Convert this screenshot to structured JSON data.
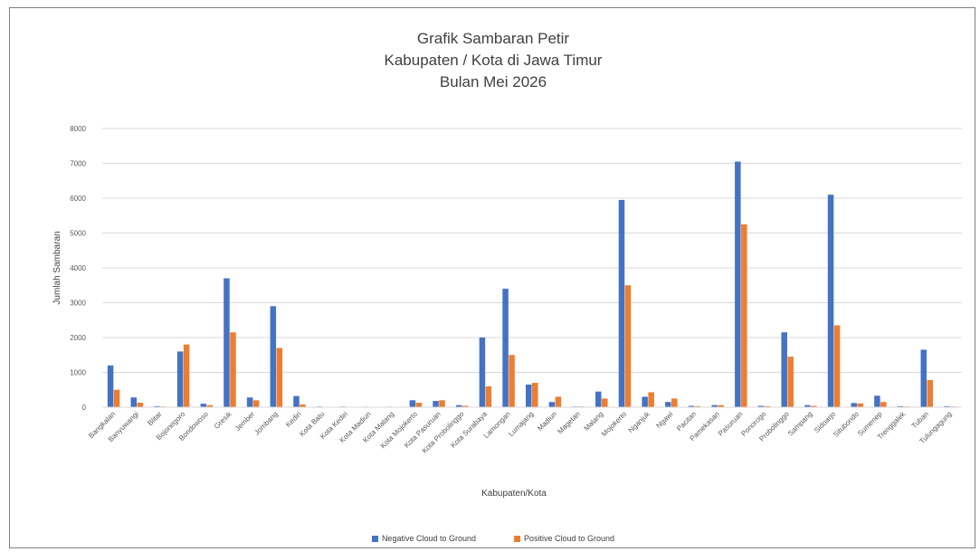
{
  "chart_data": {
    "type": "bar",
    "title": [
      "Grafik Sambaran Petir",
      "Kabupaten / Kota di Jawa Timur",
      "Bulan Mei 2026"
    ],
    "xlabel": "Kabupaten/Kota",
    "ylabel": "Jumlah Sambaran",
    "ylim": [
      0,
      8000
    ],
    "yticks": [
      0,
      1000,
      2000,
      3000,
      4000,
      5000,
      6000,
      7000,
      8000
    ],
    "grid": true,
    "legend_position": "bottom",
    "categories": [
      "Bangkalan",
      "Banyuwangi",
      "Blitar",
      "Bojonegoro",
      "Bondowoso",
      "Gresik",
      "Jember",
      "Jombang",
      "Kediri",
      "Kota Batu",
      "Kota Kediri",
      "Kota Madiun",
      "Kota Malang",
      "Kota Mojokerto",
      "Kota Pasuruan",
      "Kota Probolinggo",
      "Kota Surabaya",
      "Lamongan",
      "Lumajang",
      "Madiun",
      "Magetan",
      "Malang",
      "Mojokerto",
      "Nganjuk",
      "Ngawi",
      "Pacitan",
      "Pamekasan",
      "Pasuruan",
      "Ponorogo",
      "Probolinggo",
      "Sampang",
      "Sidoarjo",
      "Situbondo",
      "Sumenep",
      "Trenggalek",
      "Tuban",
      "Tulungagung"
    ],
    "series": [
      {
        "name": "Negative Cloud to Ground",
        "color": "#4472c4",
        "values": [
          1200,
          280,
          30,
          1600,
          100,
          3700,
          280,
          2900,
          320,
          20,
          20,
          15,
          15,
          200,
          180,
          60,
          2000,
          3400,
          650,
          150,
          20,
          450,
          5950,
          300,
          150,
          40,
          60,
          7050,
          40,
          2150,
          60,
          6100,
          120,
          330,
          30,
          1650,
          30
        ]
      },
      {
        "name": "Positive Cloud to Ground",
        "color": "#ed7d31",
        "values": [
          500,
          130,
          20,
          1800,
          60,
          2150,
          200,
          1700,
          80,
          10,
          10,
          10,
          10,
          130,
          200,
          40,
          600,
          1500,
          700,
          300,
          20,
          250,
          3500,
          430,
          250,
          30,
          60,
          5250,
          30,
          1450,
          40,
          2350,
          110,
          150,
          20,
          780,
          20
        ]
      }
    ]
  }
}
